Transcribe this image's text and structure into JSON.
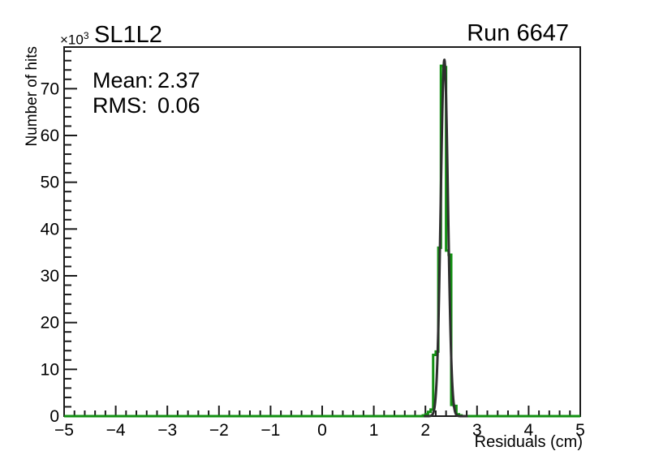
{
  "chart_data": {
    "type": "bar",
    "subtype": "step-histogram-with-gaussian-fit",
    "title": "SL1L2",
    "corner_label": "Run 6647",
    "xlabel": "Residuals (cm)",
    "ylabel": "Number of hits",
    "y_axis_multiplier": {
      "base": "×10",
      "exponent": "3"
    },
    "xlim": [
      -5,
      5
    ],
    "ylim": [
      0,
      78.9
    ],
    "xticks": [
      -5,
      -4,
      -3,
      -2,
      -1,
      0,
      1,
      2,
      3,
      4,
      5
    ],
    "xtick_labels": [
      "−5",
      "−4",
      "−3",
      "−2",
      "−1",
      "0",
      "1",
      "2",
      "3",
      "4",
      "5"
    ],
    "yticks": [
      0,
      10,
      20,
      30,
      40,
      50,
      60,
      70
    ],
    "ytick_labels": [
      "0",
      "10",
      "20",
      "30",
      "40",
      "50",
      "60",
      "70"
    ],
    "x_minor_step": 0.2,
    "y_minor_step": 2,
    "grid": false,
    "legend": "none",
    "stats": {
      "mean_label": "Mean:",
      "mean_value": "2.37",
      "rms_label": "RMS:",
      "rms_value": "0.06"
    },
    "histogram": {
      "color": "#129012",
      "value_units": "10^3 hits",
      "first_bin_edge": 1.95,
      "bin_width": 0.05,
      "values": [
        0.15,
        0.4,
        0.9,
        1.4,
        13.1,
        13.8,
        36.0,
        74.9,
        74.6,
        35.4,
        34.5,
        2.4,
        2.2,
        0.4,
        0.15
      ]
    },
    "fit": {
      "model": "gaussian",
      "color": "#2e2e2e",
      "amplitude": 76.2,
      "mean": 2.367,
      "sigma": 0.07,
      "draw_range": [
        1.97,
        2.82
      ]
    },
    "axis_color": "#1a1a1a"
  }
}
